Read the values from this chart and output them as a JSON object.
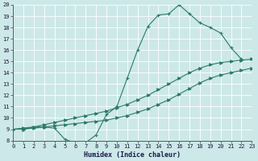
{
  "xlabel": "Humidex (Indice chaleur)",
  "xlim": [
    0,
    23
  ],
  "ylim": [
    8,
    20
  ],
  "xticks": [
    0,
    1,
    2,
    3,
    4,
    5,
    6,
    7,
    8,
    9,
    10,
    11,
    12,
    13,
    14,
    15,
    16,
    17,
    18,
    19,
    20,
    21,
    22,
    23
  ],
  "yticks": [
    8,
    9,
    10,
    11,
    12,
    13,
    14,
    15,
    16,
    17,
    18,
    19,
    20
  ],
  "bg_color": "#cde8e8",
  "line_color": "#2a7a6a",
  "grid_color": "#b0d0d0",
  "line1_x": [
    0,
    1,
    2,
    3,
    4,
    5,
    6,
    7,
    8,
    9,
    10,
    11,
    12,
    13,
    14,
    15,
    16,
    17,
    18,
    19,
    20,
    21,
    22
  ],
  "line1_y": [
    9.0,
    9.0,
    9.2,
    9.2,
    9.1,
    8.1,
    7.8,
    7.8,
    8.5,
    10.3,
    11.0,
    13.5,
    16.0,
    18.1,
    19.1,
    19.2,
    20.0,
    19.2,
    18.4,
    18.0,
    17.5,
    16.2,
    15.2
  ],
  "line2_x": [
    0,
    1,
    2,
    3,
    4,
    5,
    6,
    7,
    8,
    9,
    10,
    11,
    12,
    13,
    14,
    15,
    16,
    17,
    18,
    19,
    20,
    21,
    22,
    23
  ],
  "line2_y": [
    9.0,
    9.1,
    9.2,
    9.4,
    9.6,
    9.8,
    10.0,
    10.2,
    10.4,
    10.6,
    10.9,
    11.2,
    11.6,
    12.0,
    12.5,
    13.0,
    13.5,
    14.0,
    14.4,
    14.7,
    14.9,
    15.0,
    15.1,
    15.2
  ],
  "line3_x": [
    0,
    1,
    2,
    3,
    4,
    5,
    6,
    7,
    8,
    9,
    10,
    11,
    12,
    13,
    14,
    15,
    16,
    17,
    18,
    19,
    20,
    21,
    22,
    23
  ],
  "line3_y": [
    9.0,
    9.0,
    9.1,
    9.2,
    9.3,
    9.4,
    9.5,
    9.6,
    9.7,
    9.8,
    10.0,
    10.2,
    10.5,
    10.8,
    11.2,
    11.6,
    12.1,
    12.6,
    13.1,
    13.5,
    13.8,
    14.0,
    14.2,
    14.4
  ]
}
